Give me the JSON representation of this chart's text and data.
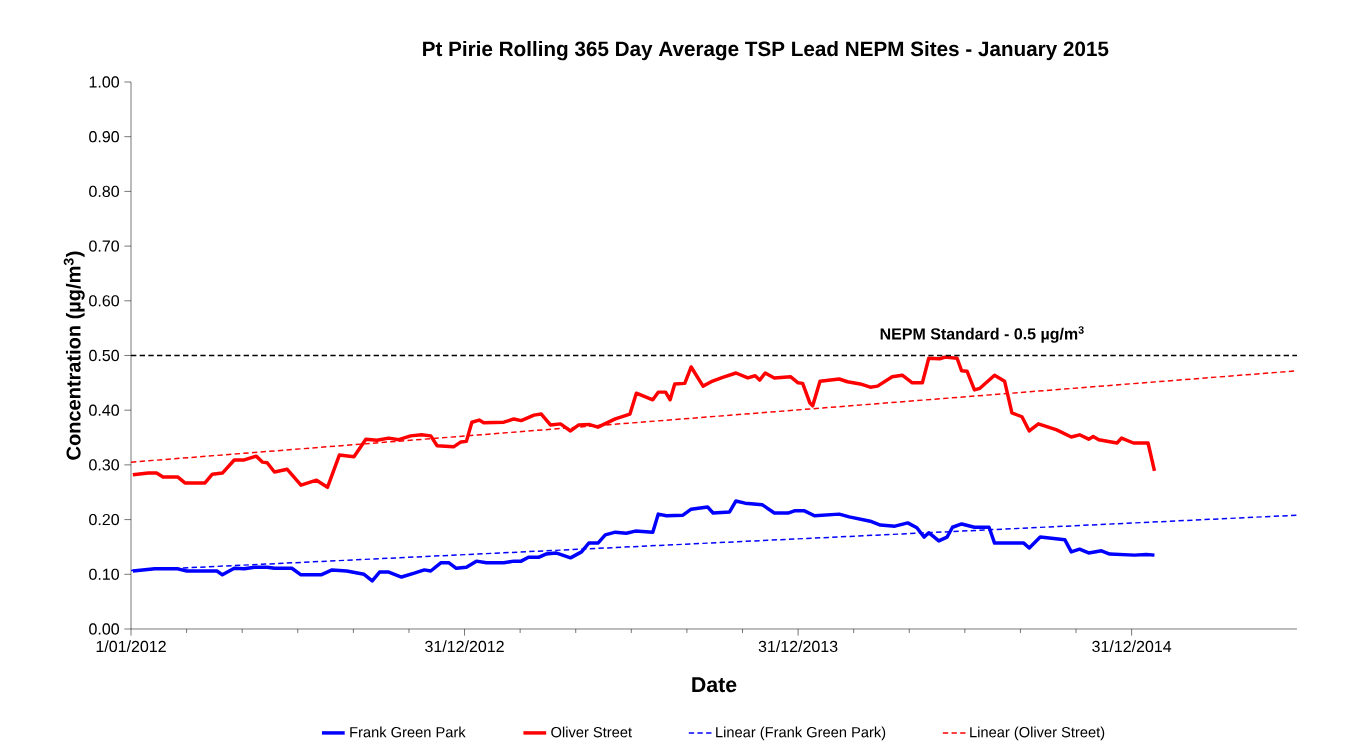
{
  "chart_data": {
    "type": "line",
    "title": "Pt Pirie Rolling  365 Day Average  TSP Lead  NEPM Sites - January  2015",
    "xlabel": "Date",
    "ylabel": "Concentration (µg/m$^{3}$)",
    "xlim": [
      "2012-01-01",
      "2015-06-30"
    ],
    "xticks": [
      {
        "value": "2012-01-01",
        "label": "1/01/2012"
      },
      {
        "value": "2012-12-31",
        "label": "31/12/2012"
      },
      {
        "value": "2013-12-31",
        "label": "31/12/2013"
      },
      {
        "value": "2014-12-31",
        "label": "31/12/2014"
      }
    ],
    "ylim": [
      0,
      1
    ],
    "yticks": [
      {
        "value": 0,
        "label": "0.00"
      },
      {
        "value": 0.1,
        "label": "0.10"
      },
      {
        "value": 0.2,
        "label": "0.20"
      },
      {
        "value": 0.3,
        "label": "0.30"
      },
      {
        "value": 0.4,
        "label": "0.40"
      },
      {
        "value": 0.5,
        "label": "0.50"
      },
      {
        "value": 0.6,
        "label": "0.60"
      },
      {
        "value": 0.7,
        "label": "0.70"
      },
      {
        "value": 0.8,
        "label": "0.80"
      },
      {
        "value": 0.9,
        "label": "0.90"
      },
      {
        "value": 1,
        "label": "1.00"
      }
    ],
    "grid": false,
    "legend": "bottom",
    "marker": "none",
    "ref_lines": [
      {
        "axis": "y",
        "value": 0.5,
        "label": "NEPM  Standard  - 0.5 µg/m$^{3}$",
        "color": "#000000",
        "line_style": "dashed"
      }
    ],
    "series": [
      {
        "name": "Frank Green Park",
        "color": "#0000ff",
        "line_style": "solid",
        "x": [
          "2012-01-03",
          "2012-01-27",
          "2012-02-21",
          "2012-03-02",
          "2012-04-04",
          "2012-04-10",
          "2012-04-23",
          "2012-05-04",
          "2012-05-15",
          "2012-05-29",
          "2012-06-06",
          "2012-06-25",
          "2012-07-05",
          "2012-07-27",
          "2012-08-08",
          "2012-08-24",
          "2012-09-12",
          "2012-09-21",
          "2012-09-29",
          "2012-10-09",
          "2012-10-23",
          "2012-11-06",
          "2012-11-17",
          "2012-11-24",
          "2012-12-05",
          "2012-12-14",
          "2012-12-22",
          "2013-01-02",
          "2013-01-13",
          "2013-01-24",
          "2013-02-12",
          "2013-02-23",
          "2013-03-03",
          "2013-03-11",
          "2013-03-22",
          "2013-03-30",
          "2013-04-10",
          "2013-04-26",
          "2013-05-08",
          "2013-05-16",
          "2013-05-26",
          "2013-06-03",
          "2013-06-14",
          "2013-06-26",
          "2013-07-06",
          "2013-07-25",
          "2013-07-31",
          "2013-08-09",
          "2013-08-27",
          "2013-09-05",
          "2013-09-23",
          "2013-09-29",
          "2013-10-17",
          "2013-10-24",
          "2013-11-03",
          "2013-11-22",
          "2013-12-05",
          "2013-12-20",
          "2013-12-27",
          "2014-01-07",
          "2014-01-18",
          "2014-02-14",
          "2014-02-25",
          "2014-03-20",
          "2014-03-31",
          "2014-04-16",
          "2014-04-30",
          "2014-05-10",
          "2014-05-18",
          "2014-05-23",
          "2014-06-03",
          "2014-06-12",
          "2014-06-18",
          "2014-06-28",
          "2014-07-12",
          "2014-07-28",
          "2014-08-03",
          "2014-08-17",
          "2014-09-04",
          "2014-09-10",
          "2014-09-22",
          "2014-10-19",
          "2014-10-26",
          "2014-11-04",
          "2014-11-14",
          "2014-11-28",
          "2014-12-07",
          "2015-01-03",
          "2015-01-16",
          "2015-01-25"
        ],
        "values": [
          0.106,
          0.11,
          0.11,
          0.106,
          0.106,
          0.099,
          0.111,
          0.11,
          0.113,
          0.113,
          0.111,
          0.111,
          0.099,
          0.099,
          0.108,
          0.106,
          0.1,
          0.088,
          0.104,
          0.104,
          0.095,
          0.102,
          0.108,
          0.106,
          0.121,
          0.121,
          0.111,
          0.113,
          0.124,
          0.121,
          0.121,
          0.124,
          0.124,
          0.131,
          0.131,
          0.137,
          0.139,
          0.13,
          0.141,
          0.157,
          0.157,
          0.172,
          0.177,
          0.175,
          0.179,
          0.177,
          0.21,
          0.207,
          0.208,
          0.219,
          0.223,
          0.212,
          0.214,
          0.234,
          0.23,
          0.227,
          0.212,
          0.212,
          0.216,
          0.216,
          0.207,
          0.21,
          0.205,
          0.197,
          0.19,
          0.188,
          0.194,
          0.185,
          0.168,
          0.176,
          0.161,
          0.168,
          0.186,
          0.192,
          0.186,
          0.186,
          0.157,
          0.157,
          0.157,
          0.148,
          0.168,
          0.163,
          0.141,
          0.146,
          0.139,
          0.143,
          0.137,
          0.135,
          0.136,
          0.135
        ]
      },
      {
        "name": "Oliver Street",
        "color": "#ff0000",
        "line_style": "solid",
        "x": [
          "2012-01-03",
          "2012-01-20",
          "2012-01-29",
          "2012-02-05",
          "2012-02-21",
          "2012-02-29",
          "2012-03-22",
          "2012-03-30",
          "2012-04-10",
          "2012-04-23",
          "2012-05-04",
          "2012-05-17",
          "2012-05-24",
          "2012-05-29",
          "2012-06-06",
          "2012-06-20",
          "2012-07-05",
          "2012-07-22",
          "2012-08-03",
          "2012-08-16",
          "2012-09-01",
          "2012-09-14",
          "2012-09-26",
          "2012-10-09",
          "2012-10-20",
          "2012-11-02",
          "2012-11-14",
          "2012-11-24",
          "2012-12-01",
          "2012-12-19",
          "2012-12-27",
          "2013-01-02",
          "2013-01-08",
          "2013-01-16",
          "2013-01-21",
          "2013-02-12",
          "2013-02-23",
          "2013-03-03",
          "2013-03-17",
          "2013-03-25",
          "2013-04-04",
          "2013-04-15",
          "2013-04-26",
          "2013-05-05",
          "2013-05-16",
          "2013-05-26",
          "2013-06-14",
          "2013-06-30",
          "2013-07-07",
          "2013-07-25",
          "2013-07-31",
          "2013-08-08",
          "2013-08-13",
          "2013-08-18",
          "2013-08-29",
          "2013-09-05",
          "2013-09-18",
          "2013-09-27",
          "2013-10-08",
          "2013-10-24",
          "2013-11-06",
          "2013-11-14",
          "2013-11-19",
          "2013-11-25",
          "2013-12-05",
          "2013-12-23",
          "2013-12-31",
          "2014-01-05",
          "2014-01-13",
          "2014-01-16",
          "2014-01-24",
          "2014-02-14",
          "2014-02-23",
          "2014-03-09",
          "2014-03-20",
          "2014-03-28",
          "2014-04-13",
          "2014-04-24",
          "2014-05-05",
          "2014-05-16",
          "2014-05-23",
          "2014-06-04",
          "2014-06-10",
          "2014-06-23",
          "2014-06-28",
          "2014-07-04",
          "2014-07-12",
          "2014-07-18",
          "2014-08-03",
          "2014-08-14",
          "2014-08-22",
          "2014-09-02",
          "2014-09-10",
          "2014-09-20",
          "2014-10-10",
          "2014-10-26",
          "2014-11-04",
          "2014-11-14",
          "2014-11-19",
          "2014-11-25",
          "2014-12-15",
          "2014-12-20",
          "2015-01-02",
          "2015-01-18",
          "2015-01-25"
        ],
        "values": [
          0.282,
          0.285,
          0.285,
          0.278,
          0.278,
          0.267,
          0.267,
          0.283,
          0.285,
          0.309,
          0.309,
          0.316,
          0.305,
          0.304,
          0.287,
          0.292,
          0.263,
          0.272,
          0.259,
          0.318,
          0.315,
          0.347,
          0.345,
          0.349,
          0.346,
          0.353,
          0.355,
          0.353,
          0.335,
          0.333,
          0.342,
          0.343,
          0.378,
          0.382,
          0.377,
          0.378,
          0.384,
          0.381,
          0.391,
          0.393,
          0.373,
          0.375,
          0.362,
          0.373,
          0.374,
          0.369,
          0.384,
          0.393,
          0.431,
          0.419,
          0.433,
          0.433,
          0.419,
          0.448,
          0.449,
          0.479,
          0.444,
          0.452,
          0.459,
          0.468,
          0.459,
          0.463,
          0.455,
          0.468,
          0.459,
          0.461,
          0.45,
          0.449,
          0.413,
          0.408,
          0.453,
          0.457,
          0.452,
          0.448,
          0.442,
          0.444,
          0.461,
          0.464,
          0.45,
          0.45,
          0.495,
          0.494,
          0.497,
          0.495,
          0.472,
          0.471,
          0.437,
          0.44,
          0.464,
          0.453,
          0.395,
          0.388,
          0.362,
          0.375,
          0.364,
          0.351,
          0.355,
          0.347,
          0.352,
          0.346,
          0.34,
          0.349,
          0.34,
          0.34,
          0.289
        ]
      },
      {
        "name": "Linear (Frank Green Park)",
        "color": "#0000ff",
        "line_style": "dashed",
        "x": [
          "2012-01-01",
          "2015-06-30"
        ],
        "values": [
          0.107,
          0.208
        ]
      },
      {
        "name": "Linear (Oliver Street)",
        "color": "#ff0000",
        "line_style": "dashed",
        "x": [
          "2012-01-01",
          "2015-06-30"
        ],
        "values": [
          0.305,
          0.472
        ]
      }
    ]
  }
}
